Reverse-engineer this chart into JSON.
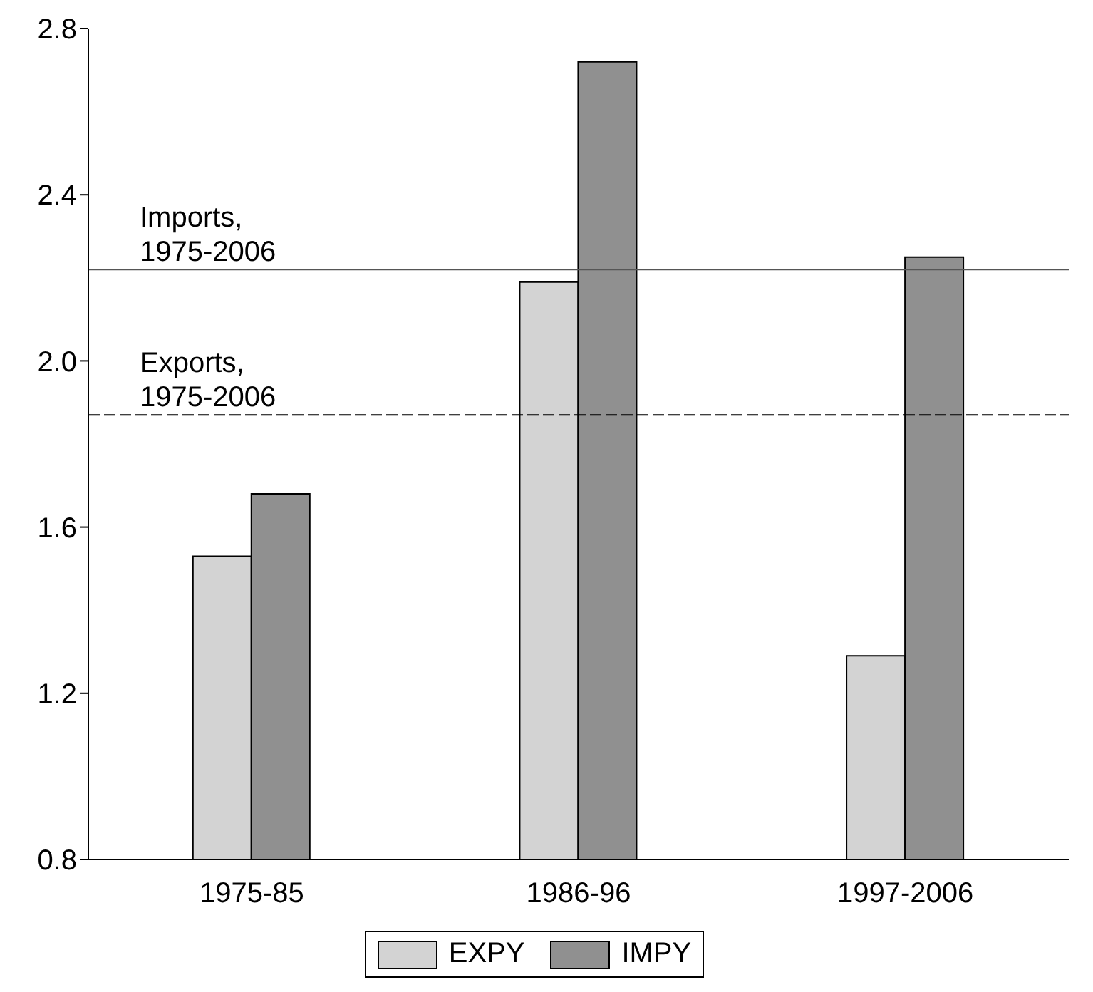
{
  "chart_data": {
    "type": "bar",
    "categories": [
      "1975-85",
      "1986-96",
      "1997-2006"
    ],
    "series": [
      {
        "name": "EXPY",
        "color": "#d3d3d3",
        "values": [
          1.53,
          2.19,
          1.29
        ]
      },
      {
        "name": "IMPY",
        "color": "#909090",
        "values": [
          1.68,
          2.72,
          2.25
        ]
      }
    ],
    "ylim": [
      0.8,
      2.8
    ],
    "yticks": [
      0.8,
      1.2,
      1.6,
      {
        "value": 2,
        "label": "2.0"
      },
      2.4,
      2.8
    ],
    "ref_lines": [
      {
        "axis": "y",
        "value": 2.22,
        "label": "Imports,\n1975-2006",
        "line_style": "solid",
        "color": "#555555"
      },
      {
        "axis": "y",
        "value": 1.87,
        "label": "Exports,\n1975-2006",
        "line_style": "dashed",
        "color": "#000000"
      }
    ],
    "grid": false,
    "legend": "bottom"
  }
}
